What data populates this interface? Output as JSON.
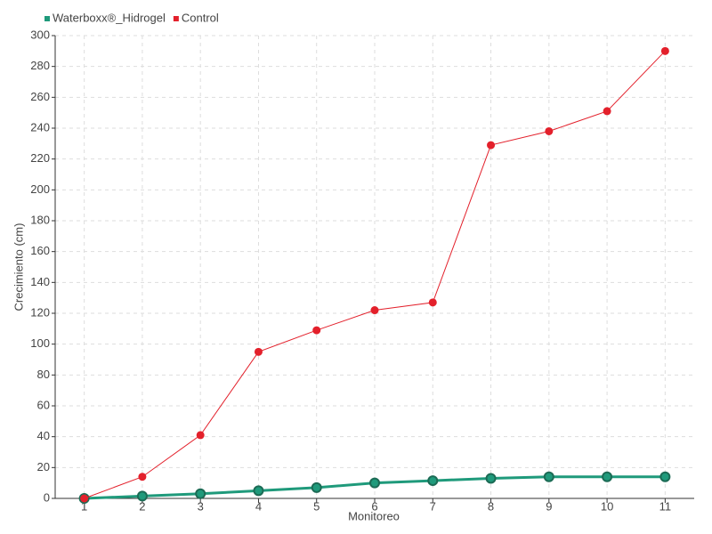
{
  "chart_data": {
    "type": "line",
    "x_label": "Monitoreo",
    "y_label": "Crecimiento (cm)",
    "categories": [
      "1",
      "2",
      "3",
      "4",
      "5",
      "6",
      "7",
      "8",
      "9",
      "10",
      "11"
    ],
    "series": [
      {
        "name": "Waterboxx®_Hidrogel",
        "color": "#1f9a7b",
        "values": [
          0,
          1.5,
          3,
          5,
          7,
          10,
          11.5,
          13,
          14,
          14,
          14
        ]
      },
      {
        "name": "Control",
        "color": "#e3202b",
        "values": [
          0,
          14,
          41,
          95,
          109,
          122,
          127,
          229,
          238,
          251,
          290
        ]
      }
    ],
    "ylim": [
      0,
      300
    ],
    "yticks": [
      0,
      20,
      40,
      60,
      80,
      100,
      120,
      140,
      160,
      180,
      200,
      220,
      240,
      260,
      280,
      300
    ],
    "grid": true,
    "legend": "top-left"
  }
}
